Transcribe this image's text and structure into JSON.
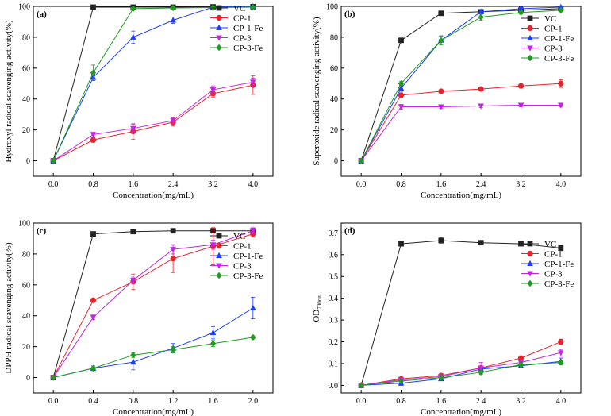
{
  "chart_data": [
    {
      "type": "line",
      "panel": "(a)",
      "xlabel": "Concentration(mg/mL)",
      "ylabel": "Hydroxyl radical scavenging activity(%)",
      "x_ticks": [
        "0.0",
        "0.8",
        "1.6",
        "2.4",
        "3.2",
        "4.0"
      ],
      "x": [
        0,
        0.8,
        1.6,
        2.4,
        3.2,
        4.0
      ],
      "xlim": [
        -0.4,
        4.4
      ],
      "ylim": [
        -10,
        100
      ],
      "y_ticks": [
        "0",
        "20",
        "40",
        "60",
        "80",
        "100"
      ],
      "y_tick_values": [
        0,
        20,
        40,
        60,
        80,
        100
      ],
      "legend": "top-right",
      "series": [
        {
          "name": "VC",
          "color": "#222222",
          "marker": "square",
          "values": [
            0,
            99.5,
            99.5,
            99.5,
            99.7,
            99.8
          ],
          "errors": [
            0,
            0.5,
            0.8,
            0.5,
            0.5,
            0.5
          ]
        },
        {
          "name": "CP-1",
          "color": "#e8242a",
          "marker": "circle",
          "values": [
            0,
            13.5,
            19,
            25,
            43.5,
            49
          ],
          "errors": [
            0,
            1.5,
            5,
            2.5,
            2.5,
            6
          ]
        },
        {
          "name": "CP-1-Fe",
          "color": "#1e3cff",
          "marker": "triangle-up",
          "values": [
            0,
            54,
            80,
            91,
            99.5,
            100
          ],
          "errors": [
            0,
            2,
            4,
            2,
            0.5,
            0.5
          ]
        },
        {
          "name": "CP-3",
          "color": "#c326e0",
          "marker": "triangle-down",
          "values": [
            0,
            17,
            21,
            26,
            46,
            51
          ],
          "errors": [
            0,
            1.5,
            2.5,
            2,
            2.5,
            2.5
          ]
        },
        {
          "name": "CP-3-Fe",
          "color": "#1f9b1f",
          "marker": "diamond",
          "values": [
            0,
            57,
            98.5,
            99,
            99.2,
            99.5
          ],
          "errors": [
            0,
            5,
            1,
            1,
            0.8,
            0.5
          ]
        }
      ]
    },
    {
      "type": "line",
      "panel": "(b)",
      "xlabel": "Concentration(mg/mL)",
      "ylabel": "Superoxide radical scavenging activity(%)",
      "x_ticks": [
        "0.0",
        "0.8",
        "1.6",
        "2.4",
        "3.2",
        "4.0"
      ],
      "x": [
        0,
        0.8,
        1.6,
        2.4,
        3.2,
        4.0
      ],
      "xlim": [
        -0.4,
        4.4
      ],
      "ylim": [
        -10,
        100
      ],
      "y_ticks": [
        "0",
        "20",
        "40",
        "60",
        "80",
        "100"
      ],
      "y_tick_values": [
        0,
        20,
        40,
        60,
        80,
        100
      ],
      "legend": "right",
      "series": [
        {
          "name": "VC",
          "color": "#222222",
          "marker": "square",
          "values": [
            0,
            78,
            95.5,
            96.5,
            97.5,
            98.5
          ],
          "errors": [
            0,
            1.5,
            1.5,
            1,
            1,
            1
          ]
        },
        {
          "name": "CP-1",
          "color": "#e8242a",
          "marker": "circle",
          "values": [
            0,
            42.5,
            45,
            46.5,
            48.5,
            50
          ],
          "errors": [
            0,
            1.5,
            1,
            1,
            1,
            2.5
          ]
        },
        {
          "name": "CP-1-Fe",
          "color": "#1e3cff",
          "marker": "triangle-up",
          "values": [
            0,
            47,
            78,
            96.5,
            98.5,
            99.5
          ],
          "errors": [
            0,
            2,
            2.5,
            1.5,
            1,
            0.5
          ]
        },
        {
          "name": "CP-3",
          "color": "#c326e0",
          "marker": "triangle-down",
          "values": [
            0,
            35,
            35,
            35.5,
            36,
            36
          ],
          "errors": [
            0,
            1.5,
            1,
            1,
            1,
            1
          ]
        },
        {
          "name": "CP-3-Fe",
          "color": "#1f9b1f",
          "marker": "diamond",
          "values": [
            0,
            50,
            78,
            93,
            96,
            97.5
          ],
          "errors": [
            0,
            1.5,
            3,
            2,
            1,
            1
          ]
        }
      ]
    },
    {
      "type": "line",
      "panel": "(c)",
      "xlabel": "Concentration(mg/mL)",
      "ylabel": "DPPH radical scavenging activity(%)",
      "x_ticks": [
        "0.0",
        "0.4",
        "0.8",
        "1.2",
        "1.6",
        "2.0"
      ],
      "x": [
        0,
        0.4,
        0.8,
        1.2,
        1.6,
        2.0
      ],
      "xlim": [
        -0.2,
        2.2
      ],
      "ylim": [
        -10,
        100
      ],
      "y_ticks": [
        "0",
        "20",
        "40",
        "60",
        "80",
        "100"
      ],
      "y_tick_values": [
        0,
        20,
        40,
        60,
        80,
        100
      ],
      "legend": "top-right",
      "series": [
        {
          "name": "VC",
          "color": "#222222",
          "marker": "square",
          "values": [
            0,
            93,
            94.5,
            95,
            95,
            95
          ],
          "errors": [
            0,
            0.5,
            0.5,
            0.5,
            0.5,
            0.5
          ]
        },
        {
          "name": "CP-1",
          "color": "#e8242a",
          "marker": "circle",
          "values": [
            0,
            50,
            62,
            77,
            85,
            93
          ],
          "errors": [
            0,
            1,
            5,
            9,
            12,
            2
          ]
        },
        {
          "name": "CP-1-Fe",
          "color": "#1e3cff",
          "marker": "triangle-up",
          "values": [
            0,
            6,
            10,
            19,
            29,
            45
          ],
          "errors": [
            0,
            1.5,
            5,
            3,
            4,
            7
          ]
        },
        {
          "name": "CP-3",
          "color": "#c326e0",
          "marker": "triangle-down",
          "values": [
            0,
            39,
            63,
            83,
            86,
            95
          ],
          "errors": [
            0,
            1.5,
            2,
            3,
            3,
            2
          ]
        },
        {
          "name": "CP-3-Fe",
          "color": "#1f9b1f",
          "marker": "diamond",
          "values": [
            0,
            6,
            14.5,
            18,
            22,
            26
          ],
          "errors": [
            0,
            1.5,
            1.5,
            2,
            2,
            1
          ]
        }
      ]
    },
    {
      "type": "line",
      "panel": "(d)",
      "xlabel": "Concentration(mg/mL)",
      "ylabel": "OD700nm",
      "ylabel_main": "OD",
      "ylabel_sub": "700nm",
      "x_ticks": [
        "0.0",
        "0.8",
        "1.6",
        "2.4",
        "3.2",
        "4.0"
      ],
      "x": [
        0,
        0.8,
        1.6,
        2.4,
        3.2,
        4.0
      ],
      "xlim": [
        -0.4,
        4.4
      ],
      "ylim": [
        -0.035,
        0.745
      ],
      "y_ticks": [
        "0.0",
        "0.1",
        "0.2",
        "0.3",
        "0.4",
        "0.5",
        "0.6",
        "0.7"
      ],
      "y_tick_values": [
        0,
        0.1,
        0.2,
        0.3,
        0.4,
        0.5,
        0.6,
        0.7
      ],
      "legend": "top-right",
      "series": [
        {
          "name": "VC",
          "color": "#222222",
          "marker": "square",
          "values": [
            0,
            0.65,
            0.665,
            0.655,
            0.65,
            0.63
          ],
          "errors": [
            0,
            0.01,
            0.012,
            0.008,
            0.006,
            0.012
          ]
        },
        {
          "name": "CP-1",
          "color": "#e8242a",
          "marker": "circle",
          "values": [
            0,
            0.03,
            0.045,
            0.08,
            0.125,
            0.2
          ],
          "errors": [
            0,
            0.005,
            0.005,
            0.008,
            0.008,
            0.012
          ]
        },
        {
          "name": "CP-1-Fe",
          "color": "#1e3cff",
          "marker": "triangle-up",
          "values": [
            0,
            0.01,
            0.03,
            0.075,
            0.09,
            0.11
          ],
          "errors": [
            0,
            0.01,
            0.008,
            0.01,
            0.008,
            0.015
          ]
        },
        {
          "name": "CP-3",
          "color": "#c326e0",
          "marker": "triangle-down",
          "values": [
            0,
            0.025,
            0.04,
            0.08,
            0.105,
            0.15
          ],
          "errors": [
            0,
            0.005,
            0.006,
            0.025,
            0.008,
            0.015
          ]
        },
        {
          "name": "CP-3-Fe",
          "color": "#1f9b1f",
          "marker": "diamond",
          "values": [
            0,
            0.02,
            0.035,
            0.06,
            0.095,
            0.105
          ],
          "errors": [
            0,
            0.005,
            0.005,
            0.01,
            0.008,
            0.008
          ]
        }
      ]
    }
  ]
}
